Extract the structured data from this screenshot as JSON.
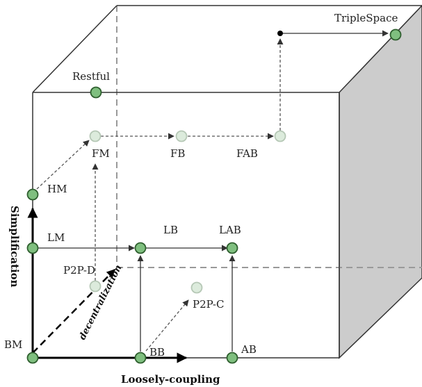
{
  "colors": {
    "solid_node": "#7fbf7f",
    "solid_node_stroke": "#2f5f2f",
    "faded_node": "#d8ead8",
    "faded_node_stroke": "#b0c4b0",
    "line": "#333333",
    "dashed_line": "#555555",
    "hidden_edge": "#999999",
    "side_face": "#cccccc"
  },
  "axes": {
    "x_label": "Loosely-coupling",
    "y_label": "Simplification",
    "z_label": "decentralization"
  },
  "nodes": {
    "restful": "Restful",
    "triplespace": "TripleSpace",
    "hm": "HM",
    "lm": "LM",
    "lb": "LB",
    "lab": "LAB",
    "fm": "FM",
    "fb": "FB",
    "fab": "FAB",
    "p2pd": "P2P-D",
    "p2pc": "P2P-C",
    "bm": "BM",
    "bb": "BB",
    "ab": "AB"
  }
}
